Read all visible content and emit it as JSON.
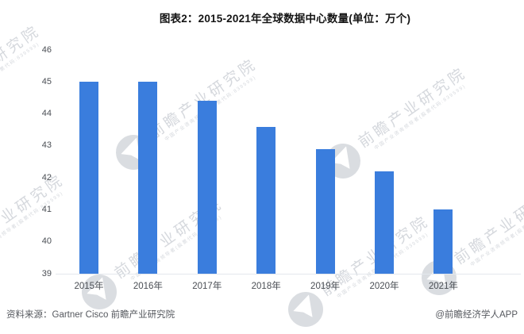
{
  "title": "图表2：2015-2021年全球数据中心数量(单位：万个)",
  "chart_data": {
    "type": "bar",
    "categories": [
      "2015年",
      "2016年",
      "2017年",
      "2018年",
      "2019年",
      "2020年",
      "2021年"
    ],
    "values": [
      45.0,
      45.0,
      44.4,
      43.6,
      42.9,
      42.2,
      41.0
    ],
    "title": "图表2：2015-2021年全球数据中心数量(单位：万个)",
    "xlabel": "",
    "ylabel": "",
    "ylim": [
      39,
      46
    ],
    "yticks": [
      39,
      40,
      41,
      42,
      43,
      44,
      45,
      46
    ],
    "grid": false,
    "legend": "none",
    "bar_color": "#3A7DDD"
  },
  "footer": {
    "source_label": "资料来源：Gartner Cisco 前瞻产业研究院",
    "credit": "@前瞻经济学人APP"
  },
  "watermark": {
    "text": "前瞻产业研究院",
    "subtext": "中国产业咨询领导者(股票代码:839599)",
    "color": "#d2d4d9"
  }
}
